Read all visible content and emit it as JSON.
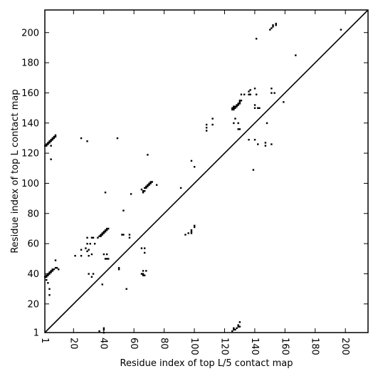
{
  "chart_data": {
    "type": "scatter",
    "xlabel": "Residue index of top L/5 contact map",
    "ylabel": "Residue index of top L contact map",
    "xlim": [
      1,
      215
    ],
    "ylim": [
      1,
      215
    ],
    "xticks": [
      1,
      20,
      40,
      60,
      80,
      100,
      120,
      140,
      160,
      180,
      200
    ],
    "yticks": [
      1,
      20,
      40,
      60,
      80,
      100,
      120,
      140,
      160,
      180,
      200
    ],
    "marker_color": "#000000",
    "diagonal": true,
    "grid": false,
    "series": [
      {
        "points": [
          [
            1,
            125
          ],
          [
            2,
            125
          ],
          [
            2,
            126
          ],
          [
            3,
            126
          ],
          [
            3,
            127
          ],
          [
            4,
            127
          ],
          [
            4,
            128
          ],
          [
            5,
            128
          ],
          [
            5,
            129
          ],
          [
            6,
            129
          ],
          [
            6,
            130
          ],
          [
            7,
            130
          ],
          [
            7,
            131
          ],
          [
            8,
            131
          ],
          [
            8,
            132
          ],
          [
            5,
            125
          ],
          [
            5,
            116
          ],
          [
            25,
            130
          ],
          [
            29,
            128
          ],
          [
            49,
            130
          ],
          [
            25,
            56
          ],
          [
            28,
            57
          ],
          [
            29,
            55
          ],
          [
            30,
            56
          ],
          [
            29,
            60
          ],
          [
            31,
            60
          ],
          [
            34,
            60
          ],
          [
            29,
            64
          ],
          [
            32,
            64
          ],
          [
            33,
            64
          ],
          [
            36,
            64
          ],
          [
            37,
            65
          ],
          [
            38,
            65
          ],
          [
            38,
            66
          ],
          [
            39,
            66
          ],
          [
            39,
            67
          ],
          [
            40,
            67
          ],
          [
            40,
            68
          ],
          [
            41,
            68
          ],
          [
            41,
            69
          ],
          [
            42,
            69
          ],
          [
            42,
            70
          ],
          [
            43,
            70
          ],
          [
            40,
            53
          ],
          [
            42,
            53
          ],
          [
            41,
            50
          ],
          [
            42,
            50
          ],
          [
            43,
            50
          ],
          [
            41,
            94
          ],
          [
            30,
            40
          ],
          [
            32,
            38
          ],
          [
            33,
            40
          ],
          [
            25,
            52
          ],
          [
            21,
            52
          ],
          [
            30,
            52
          ],
          [
            32,
            53
          ],
          [
            53,
            82
          ],
          [
            53,
            66
          ],
          [
            52,
            66
          ],
          [
            57,
            66
          ],
          [
            57,
            64
          ],
          [
            58,
            93
          ],
          [
            50,
            44
          ],
          [
            50,
            43
          ],
          [
            55,
            30
          ],
          [
            65,
            96
          ],
          [
            66,
            95
          ],
          [
            66,
            94
          ],
          [
            67,
            95
          ],
          [
            67,
            97
          ],
          [
            68,
            97
          ],
          [
            68,
            98
          ],
          [
            69,
            98
          ],
          [
            69,
            99
          ],
          [
            70,
            99
          ],
          [
            70,
            100
          ],
          [
            71,
            100
          ],
          [
            71,
            101
          ],
          [
            72,
            101
          ],
          [
            75,
            99
          ],
          [
            65,
            57
          ],
          [
            67,
            57
          ],
          [
            67,
            54
          ],
          [
            68,
            42
          ],
          [
            66,
            42
          ],
          [
            66,
            40
          ],
          [
            67,
            39
          ],
          [
            66,
            39
          ],
          [
            65,
            40
          ],
          [
            69,
            119
          ],
          [
            91,
            97
          ],
          [
            94,
            66
          ],
          [
            96,
            67
          ],
          [
            98,
            67
          ],
          [
            98,
            68
          ],
          [
            98,
            69
          ],
          [
            100,
            71
          ],
          [
            100,
            72
          ],
          [
            98,
            115
          ],
          [
            100,
            111
          ],
          [
            108,
            135
          ],
          [
            108,
            137
          ],
          [
            108,
            139
          ],
          [
            112,
            139
          ],
          [
            112,
            143
          ],
          [
            125,
            149
          ],
          [
            125,
            150
          ],
          [
            126,
            149
          ],
          [
            126,
            150
          ],
          [
            126,
            151
          ],
          [
            127,
            150
          ],
          [
            127,
            151
          ],
          [
            128,
            151
          ],
          [
            128,
            152
          ],
          [
            129,
            152
          ],
          [
            129,
            153
          ],
          [
            130,
            153
          ],
          [
            130,
            154
          ],
          [
            130,
            155
          ],
          [
            131,
            155
          ],
          [
            131,
            159
          ],
          [
            133,
            159
          ],
          [
            126,
            140
          ],
          [
            127,
            143
          ],
          [
            129,
            140
          ],
          [
            129,
            136
          ],
          [
            130,
            136
          ],
          [
            136,
            159
          ],
          [
            136,
            161
          ],
          [
            137,
            159
          ],
          [
            137,
            162
          ],
          [
            140,
            163
          ],
          [
            141,
            159
          ],
          [
            140,
            152
          ],
          [
            140,
            150
          ],
          [
            142,
            150
          ],
          [
            143,
            150
          ],
          [
            136,
            129
          ],
          [
            140,
            129
          ],
          [
            142,
            126
          ],
          [
            147,
            127
          ],
          [
            147,
            125
          ],
          [
            151,
            126
          ],
          [
            139,
            109
          ],
          [
            141,
            196
          ],
          [
            148,
            140
          ],
          [
            151,
            160
          ],
          [
            151,
            163
          ],
          [
            153,
            160
          ],
          [
            150,
            202
          ],
          [
            151,
            203
          ],
          [
            152,
            204
          ],
          [
            152,
            205
          ],
          [
            154,
            205
          ],
          [
            154,
            206
          ],
          [
            159,
            154
          ],
          [
            167,
            185
          ],
          [
            197,
            202
          ],
          [
            1,
            38
          ],
          [
            2,
            38
          ],
          [
            2,
            39
          ],
          [
            3,
            39
          ],
          [
            3,
            40
          ],
          [
            4,
            40
          ],
          [
            4,
            41
          ],
          [
            5,
            41
          ],
          [
            5,
            42
          ],
          [
            6,
            42
          ],
          [
            6,
            43
          ],
          [
            7,
            43
          ],
          [
            8,
            44
          ],
          [
            9,
            44
          ],
          [
            10,
            43
          ],
          [
            8,
            49
          ],
          [
            2,
            36
          ],
          [
            3,
            34
          ],
          [
            4,
            30
          ],
          [
            4,
            26
          ],
          [
            37,
            2
          ],
          [
            40,
            3
          ],
          [
            40,
            4
          ],
          [
            40,
            1
          ],
          [
            39,
            33
          ],
          [
            125,
            2
          ],
          [
            126,
            3
          ],
          [
            126,
            4
          ],
          [
            127,
            3
          ],
          [
            128,
            4
          ],
          [
            129,
            5
          ],
          [
            129,
            6
          ],
          [
            130,
            8
          ],
          [
            130,
            5
          ]
        ]
      }
    ]
  }
}
